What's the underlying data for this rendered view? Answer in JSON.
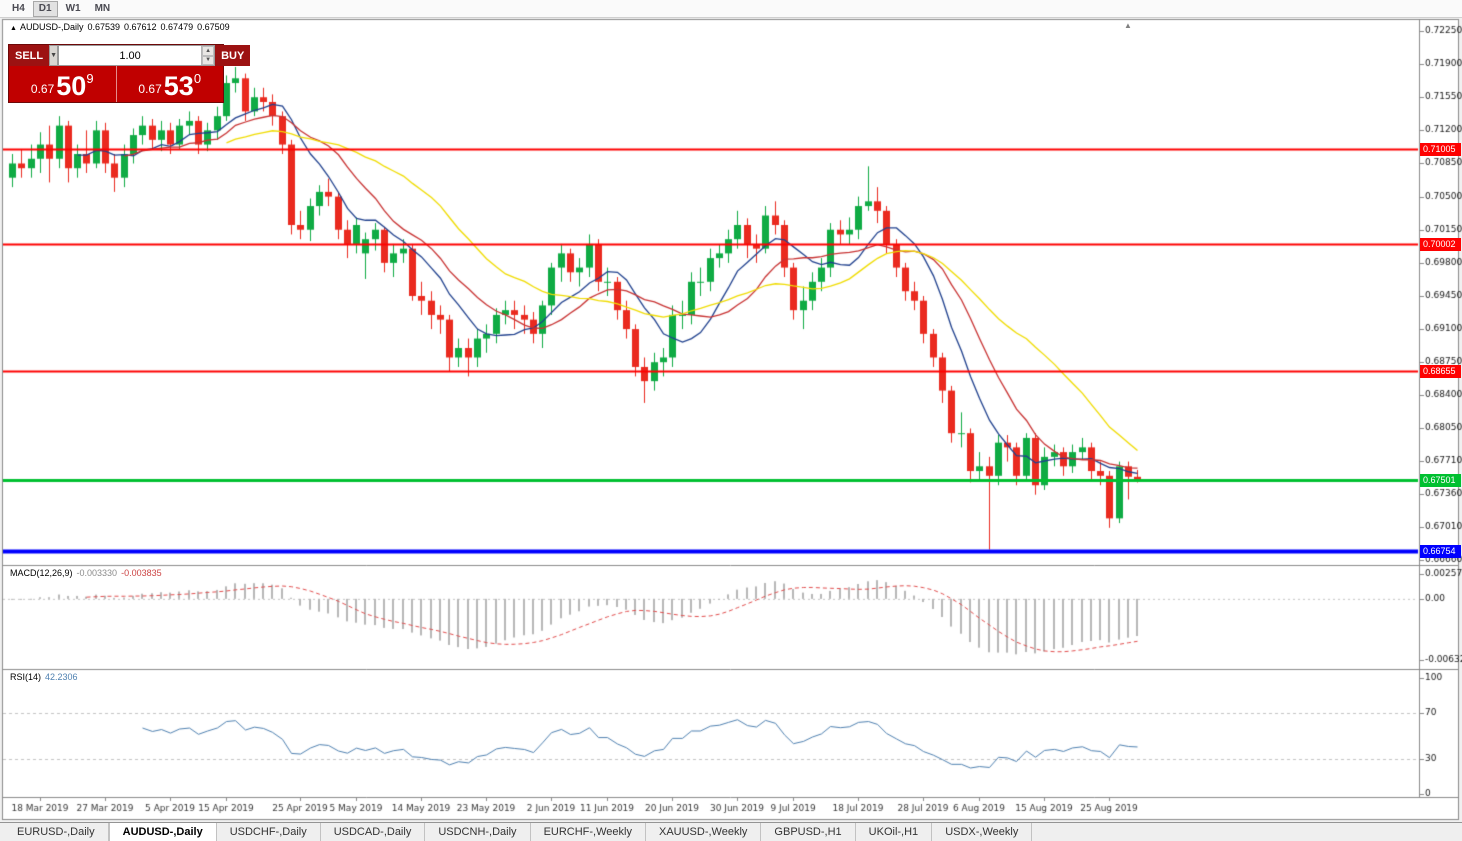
{
  "toolbar": {
    "timeframes": [
      {
        "label": "H4",
        "active": false
      },
      {
        "label": "D1",
        "active": true
      },
      {
        "label": "W1",
        "active": false
      },
      {
        "label": "MN",
        "active": false
      }
    ]
  },
  "chart_header": {
    "symbol": "AUDUSD-,Daily",
    "open": "0.67539",
    "high": "0.67612",
    "low": "0.67479",
    "close": "0.67509"
  },
  "trade_panel": {
    "sell_label": "SELL",
    "buy_label": "BUY",
    "volume": "1.00",
    "sell_price": {
      "prefix": "0.67",
      "big": "50",
      "sup": "9"
    },
    "buy_price": {
      "prefix": "0.67",
      "big": "53",
      "sup": "0"
    }
  },
  "colors": {
    "candle_up": "#0fab44",
    "candle_down": "#ea2a1f",
    "macd_hist": "#b8b8b8",
    "macd_signal": "#e24c4c",
    "rsi_line": "#4f81b1",
    "scale_text": "#1a1a1a",
    "date_text": "#3b3b3b",
    "grid_dashed": "#c4c4c4",
    "panel_border": "#8a8a8a"
  },
  "price_scale": {
    "labels": [
      "0.72250",
      "0.71900",
      "0.71550",
      "0.71200",
      "0.70850",
      "0.70500",
      "0.70150",
      "0.69800",
      "0.69450",
      "0.69100",
      "0.68750",
      "0.68400",
      "0.68050",
      "0.67710",
      "0.67360",
      "0.67010",
      "0.66660"
    ]
  },
  "levels": [
    {
      "value": 0.71005,
      "label": "0.71005",
      "color": "#fe0101",
      "width": 2
    },
    {
      "value": 0.70002,
      "label": "0.70002",
      "color": "#fe0101",
      "width": 2
    },
    {
      "value": 0.68655,
      "label": "0.68655",
      "color": "#fe0101",
      "width": 2
    },
    {
      "value": 0.67501,
      "label": "0.67501",
      "color": "#00c030",
      "width": 3
    },
    {
      "value": 0.66754,
      "label": "0.66754",
      "color": "#0000fe",
      "width": 4
    }
  ],
  "indicators": {
    "macd": {
      "name": "MACD(12,26,9)",
      "value_main": "-0.003330",
      "value_signal": "-0.003835",
      "scale_max": "0.002574",
      "scale_zero": "0.00",
      "scale_min": "-0.006326",
      "max": 0.002574,
      "min": -0.006326,
      "fast": 12,
      "slow": 26,
      "signal": 9
    },
    "rsi": {
      "name": "RSI(14)",
      "value": "42.2306",
      "period": 14,
      "scale": [
        "100",
        "70",
        "30",
        "0"
      ],
      "level_lines": [
        70,
        30
      ]
    }
  },
  "date_axis": {
    "labels": [
      "18 Mar 2019",
      "27 Mar 2019",
      "5 Apr 2019",
      "15 Apr 2019",
      "25 Apr 2019",
      "5 May 2019",
      "14 May 2019",
      "23 May 2019",
      "2 Jun 2019",
      "11 Jun 2019",
      "20 Jun 2019",
      "30 Jun 2019",
      "9 Jul 2019",
      "18 Jul 2019",
      "28 Jul 2019",
      "6 Aug 2019",
      "15 Aug 2019",
      "25 Aug 2019"
    ],
    "indices": [
      3,
      10,
      17,
      23,
      31,
      37,
      44,
      51,
      58,
      64,
      71,
      78,
      84,
      91,
      98,
      104,
      111,
      118
    ]
  },
  "tabs": [
    {
      "label": "EURUSD-,Daily",
      "active": false
    },
    {
      "label": "AUDUSD-,Daily",
      "active": true
    },
    {
      "label": "USDCHF-,Daily",
      "active": false
    },
    {
      "label": "USDCAD-,Daily",
      "active": false
    },
    {
      "label": "USDCNH-,Daily",
      "active": false
    },
    {
      "label": "EURCHF-,Weekly",
      "active": false
    },
    {
      "label": "XAUUSD-,Weekly",
      "active": false
    },
    {
      "label": "GBPUSD-,H1",
      "active": false
    },
    {
      "label": "UKOil-,H1",
      "active": false
    },
    {
      "label": "USDX-,Weekly",
      "active": false
    }
  ],
  "chart_data": {
    "type": "candlestick",
    "title": "AUDUSD-,Daily",
    "symbol": "AUDUSD",
    "timeframe": "Daily",
    "ylim": [
      0.6666,
      0.7225
    ],
    "moving_averages": [
      {
        "period": 8,
        "color": "#20418e"
      },
      {
        "period": 13,
        "color": "#c83232"
      },
      {
        "period": 24,
        "color": "#f0dc00"
      }
    ],
    "candles": [
      [
        0.707,
        0.7095,
        0.706,
        0.7085
      ],
      [
        0.7085,
        0.71,
        0.707,
        0.708
      ],
      [
        0.708,
        0.7105,
        0.707,
        0.709
      ],
      [
        0.709,
        0.7118,
        0.7075,
        0.7105
      ],
      [
        0.7105,
        0.7125,
        0.7065,
        0.709
      ],
      [
        0.709,
        0.7135,
        0.708,
        0.7125
      ],
      [
        0.7125,
        0.713,
        0.7065,
        0.708
      ],
      [
        0.708,
        0.7105,
        0.707,
        0.7095
      ],
      [
        0.7095,
        0.712,
        0.7075,
        0.7085
      ],
      [
        0.7085,
        0.713,
        0.708,
        0.712
      ],
      [
        0.712,
        0.7128,
        0.7075,
        0.7085
      ],
      [
        0.7085,
        0.7095,
        0.7055,
        0.707
      ],
      [
        0.707,
        0.7105,
        0.706,
        0.7095
      ],
      [
        0.7095,
        0.7122,
        0.7085,
        0.7115
      ],
      [
        0.7115,
        0.7135,
        0.7105,
        0.7125
      ],
      [
        0.7125,
        0.7132,
        0.71,
        0.711
      ],
      [
        0.711,
        0.713,
        0.7098,
        0.712
      ],
      [
        0.712,
        0.7128,
        0.7095,
        0.7105
      ],
      [
        0.7105,
        0.7132,
        0.71,
        0.7125
      ],
      [
        0.7125,
        0.714,
        0.7115,
        0.713
      ],
      [
        0.713,
        0.7135,
        0.7095,
        0.7105
      ],
      [
        0.7105,
        0.7128,
        0.7098,
        0.712
      ],
      [
        0.712,
        0.7145,
        0.711,
        0.7135
      ],
      [
        0.7135,
        0.7178,
        0.713,
        0.717
      ],
      [
        0.717,
        0.7187,
        0.716,
        0.7175
      ],
      [
        0.7175,
        0.718,
        0.713,
        0.714
      ],
      [
        0.714,
        0.7165,
        0.7135,
        0.7155
      ],
      [
        0.7155,
        0.7165,
        0.714,
        0.715
      ],
      [
        0.715,
        0.7158,
        0.7125,
        0.7135
      ],
      [
        0.7135,
        0.714,
        0.7095,
        0.7105
      ],
      [
        0.7105,
        0.711,
        0.701,
        0.702
      ],
      [
        0.702,
        0.7035,
        0.7005,
        0.7015
      ],
      [
        0.7015,
        0.7048,
        0.7003,
        0.704
      ],
      [
        0.704,
        0.7062,
        0.703,
        0.7055
      ],
      [
        0.7055,
        0.7069,
        0.704,
        0.705
      ],
      [
        0.705,
        0.7055,
        0.7005,
        0.7015
      ],
      [
        0.7015,
        0.7025,
        0.6985,
        0.7
      ],
      [
        0.7,
        0.7028,
        0.699,
        0.702
      ],
      [
        0.699,
        0.7012,
        0.6963,
        0.7005
      ],
      [
        0.7005,
        0.7022,
        0.6993,
        0.7015
      ],
      [
        0.7015,
        0.7018,
        0.697,
        0.698
      ],
      [
        0.698,
        0.7,
        0.6965,
        0.699
      ],
      [
        0.699,
        0.7005,
        0.698,
        0.6995
      ],
      [
        0.6995,
        0.7,
        0.694,
        0.6945
      ],
      [
        0.6945,
        0.696,
        0.6925,
        0.694
      ],
      [
        0.694,
        0.695,
        0.691,
        0.6925
      ],
      [
        0.6925,
        0.6935,
        0.6905,
        0.692
      ],
      [
        0.692,
        0.6925,
        0.6865,
        0.688
      ],
      [
        0.688,
        0.69,
        0.687,
        0.689
      ],
      [
        0.689,
        0.69,
        0.686,
        0.688
      ],
      [
        0.688,
        0.691,
        0.687,
        0.69
      ],
      [
        0.69,
        0.6915,
        0.6885,
        0.6905
      ],
      [
        0.6905,
        0.6932,
        0.6895,
        0.6925
      ],
      [
        0.6925,
        0.694,
        0.6915,
        0.693
      ],
      [
        0.693,
        0.694,
        0.691,
        0.6925
      ],
      [
        0.6925,
        0.6935,
        0.6905,
        0.692
      ],
      [
        0.692,
        0.6928,
        0.6895,
        0.6905
      ],
      [
        0.6905,
        0.694,
        0.689,
        0.6935
      ],
      [
        0.6935,
        0.698,
        0.6925,
        0.6975
      ],
      [
        0.6975,
        0.7,
        0.696,
        0.699
      ],
      [
        0.699,
        0.6995,
        0.696,
        0.697
      ],
      [
        0.697,
        0.6985,
        0.6955,
        0.6975
      ],
      [
        0.6975,
        0.701,
        0.6965,
        0.7
      ],
      [
        0.7,
        0.7005,
        0.695,
        0.696
      ],
      [
        0.696,
        0.6975,
        0.6945,
        0.696
      ],
      [
        0.696,
        0.6965,
        0.692,
        0.693
      ],
      [
        0.693,
        0.694,
        0.69,
        0.691
      ],
      [
        0.691,
        0.6915,
        0.686,
        0.687
      ],
      [
        0.687,
        0.688,
        0.6832,
        0.6855
      ],
      [
        0.6855,
        0.6885,
        0.6845,
        0.6875
      ],
      [
        0.6875,
        0.689,
        0.686,
        0.688
      ],
      [
        0.688,
        0.6935,
        0.687,
        0.6925
      ],
      [
        0.6925,
        0.694,
        0.691,
        0.6925
      ],
      [
        0.6925,
        0.697,
        0.6915,
        0.696
      ],
      [
        0.696,
        0.6975,
        0.6945,
        0.696
      ],
      [
        0.696,
        0.6995,
        0.695,
        0.6985
      ],
      [
        0.6985,
        0.7,
        0.6975,
        0.699
      ],
      [
        0.699,
        0.7015,
        0.698,
        0.7005
      ],
      [
        0.7005,
        0.7035,
        0.6995,
        0.702
      ],
      [
        0.702,
        0.7027,
        0.6985,
        0.7
      ],
      [
        0.7,
        0.701,
        0.698,
        0.6995
      ],
      [
        0.6995,
        0.704,
        0.699,
        0.703
      ],
      [
        0.703,
        0.7045,
        0.701,
        0.702
      ],
      [
        0.702,
        0.7025,
        0.6965,
        0.6975
      ],
      [
        0.6975,
        0.698,
        0.692,
        0.693
      ],
      [
        0.693,
        0.6955,
        0.691,
        0.694
      ],
      [
        0.694,
        0.697,
        0.693,
        0.696
      ],
      [
        0.696,
        0.6985,
        0.695,
        0.6975
      ],
      [
        0.6975,
        0.7022,
        0.6965,
        0.7015
      ],
      [
        0.7015,
        0.7025,
        0.7,
        0.701
      ],
      [
        0.701,
        0.7028,
        0.7,
        0.7015
      ],
      [
        0.7015,
        0.705,
        0.7005,
        0.704
      ],
      [
        0.704,
        0.7082,
        0.7035,
        0.7045
      ],
      [
        0.7045,
        0.706,
        0.7022,
        0.7035
      ],
      [
        0.7035,
        0.704,
        0.699,
        0.7
      ],
      [
        0.7,
        0.7005,
        0.6965,
        0.6975
      ],
      [
        0.6975,
        0.698,
        0.694,
        0.695
      ],
      [
        0.695,
        0.696,
        0.693,
        0.694
      ],
      [
        0.694,
        0.6945,
        0.6895,
        0.6905
      ],
      [
        0.6905,
        0.691,
        0.687,
        0.688
      ],
      [
        0.688,
        0.6885,
        0.6832,
        0.6845
      ],
      [
        0.6845,
        0.685,
        0.679,
        0.68
      ],
      [
        0.68,
        0.6822,
        0.6785,
        0.68
      ],
      [
        0.68,
        0.6805,
        0.6748,
        0.676
      ],
      [
        0.676,
        0.678,
        0.675,
        0.6765
      ],
      [
        0.6765,
        0.6775,
        0.6677,
        0.6755
      ],
      [
        0.6755,
        0.6798,
        0.6745,
        0.679
      ],
      [
        0.679,
        0.6798,
        0.677,
        0.6785
      ],
      [
        0.6785,
        0.679,
        0.6745,
        0.6755
      ],
      [
        0.6755,
        0.68,
        0.675,
        0.6795
      ],
      [
        0.6795,
        0.68,
        0.6735,
        0.6745
      ],
      [
        0.6745,
        0.6785,
        0.674,
        0.6775
      ],
      [
        0.6775,
        0.6788,
        0.6765,
        0.678
      ],
      [
        0.678,
        0.6785,
        0.6755,
        0.6765
      ],
      [
        0.6765,
        0.6788,
        0.6758,
        0.678
      ],
      [
        0.678,
        0.6795,
        0.6772,
        0.6785
      ],
      [
        0.6785,
        0.679,
        0.675,
        0.676
      ],
      [
        0.676,
        0.677,
        0.6745,
        0.6755
      ],
      [
        0.6755,
        0.676,
        0.67,
        0.671
      ],
      [
        0.671,
        0.677,
        0.6705,
        0.6765
      ],
      [
        0.6765,
        0.677,
        0.673,
        0.6754
      ],
      [
        0.67539,
        0.67612,
        0.67479,
        0.67509
      ]
    ]
  }
}
